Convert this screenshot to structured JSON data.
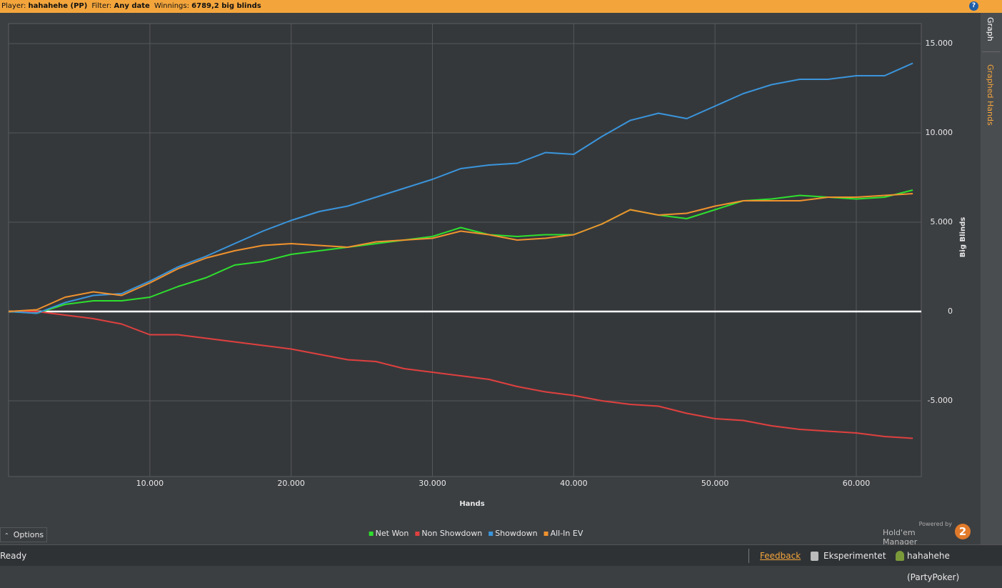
{
  "header": {
    "player_label": "Player:",
    "player": "hahahehe (PP)",
    "filter_label": "Filter:",
    "filter": "Any date",
    "winnings_label": "Winnings:",
    "winnings": "6789,2 big blinds",
    "help": "?"
  },
  "sidebar": {
    "tabs": [
      "Graph",
      "Graphed Hands"
    ]
  },
  "chart_data": {
    "type": "line",
    "xlabel": "Hands",
    "ylabel": "Big Blinds",
    "x": [
      0,
      2000,
      4000,
      6000,
      8000,
      10000,
      12000,
      14000,
      16000,
      18000,
      20000,
      22000,
      24000,
      26000,
      28000,
      30000,
      32000,
      34000,
      36000,
      38000,
      40000,
      42000,
      44000,
      46000,
      48000,
      50000,
      52000,
      54000,
      56000,
      58000,
      60000,
      62000,
      64000
    ],
    "series": [
      {
        "name": "Net Won",
        "color": "#2ee02e",
        "values": [
          0,
          -100,
          400,
          600,
          600,
          800,
          1400,
          1900,
          2600,
          2800,
          3200,
          3400,
          3600,
          3800,
          4000,
          4200,
          4700,
          4300,
          4200,
          4300,
          4300,
          4900,
          5700,
          5400,
          5200,
          5700,
          6200,
          6300,
          6500,
          6400,
          6300,
          6400,
          6800
        ]
      },
      {
        "name": "Non Showdown",
        "color": "#e0403f",
        "values": [
          0,
          0,
          -200,
          -400,
          -700,
          -1300,
          -1300,
          -1500,
          -1700,
          -1900,
          -2100,
          -2400,
          -2700,
          -2800,
          -3200,
          -3400,
          -3600,
          -3800,
          -4200,
          -4500,
          -4700,
          -5000,
          -5200,
          -5300,
          -5700,
          -6000,
          -6100,
          -6400,
          -6600,
          -6700,
          -6800,
          -7000,
          -7100
        ]
      },
      {
        "name": "Showdown",
        "color": "#3a95dc",
        "values": [
          0,
          -100,
          500,
          900,
          1000,
          1700,
          2500,
          3100,
          3800,
          4500,
          5100,
          5600,
          5900,
          6400,
          6900,
          7400,
          8000,
          8200,
          8300,
          8900,
          8800,
          9800,
          10700,
          11100,
          10800,
          11500,
          12200,
          12700,
          13000,
          13000,
          13200,
          13200,
          13900
        ]
      },
      {
        "name": "All-In EV",
        "color": "#f0922e",
        "values": [
          0,
          100,
          800,
          1100,
          900,
          1600,
          2400,
          3000,
          3400,
          3700,
          3800,
          3700,
          3600,
          3900,
          4000,
          4100,
          4500,
          4300,
          4000,
          4100,
          4300,
          4900,
          5700,
          5400,
          5500,
          5900,
          6200,
          6200,
          6200,
          6400,
          6400,
          6500,
          6600
        ]
      }
    ],
    "xlim": [
      0,
      64600
    ],
    "ylim": [
      -9240,
      16120
    ],
    "xticks": [
      {
        "value": 10000,
        "label": "10.000"
      },
      {
        "value": 20000,
        "label": "20.000"
      },
      {
        "value": 30000,
        "label": "30.000"
      },
      {
        "value": 40000,
        "label": "40.000"
      },
      {
        "value": 50000,
        "label": "50.000"
      },
      {
        "value": 60000,
        "label": "60.000"
      }
    ],
    "yticks": [
      {
        "value": -5000,
        "label": "-5.000"
      },
      0,
      {
        "value": 5000,
        "label": "5.000"
      },
      {
        "value": 10000,
        "label": "10.000"
      },
      {
        "value": 15000,
        "label": "15.000"
      }
    ],
    "grid": true,
    "legend": "bottom"
  },
  "options_button": "Options",
  "branding": {
    "powered_by": "Powered by",
    "product": "Hold'em Manager",
    "version": "2"
  },
  "status_bar": {
    "status": "Ready",
    "feedback": "Feedback",
    "database": "Eksperimentet",
    "user": "hahahehe (PartyPoker)"
  }
}
